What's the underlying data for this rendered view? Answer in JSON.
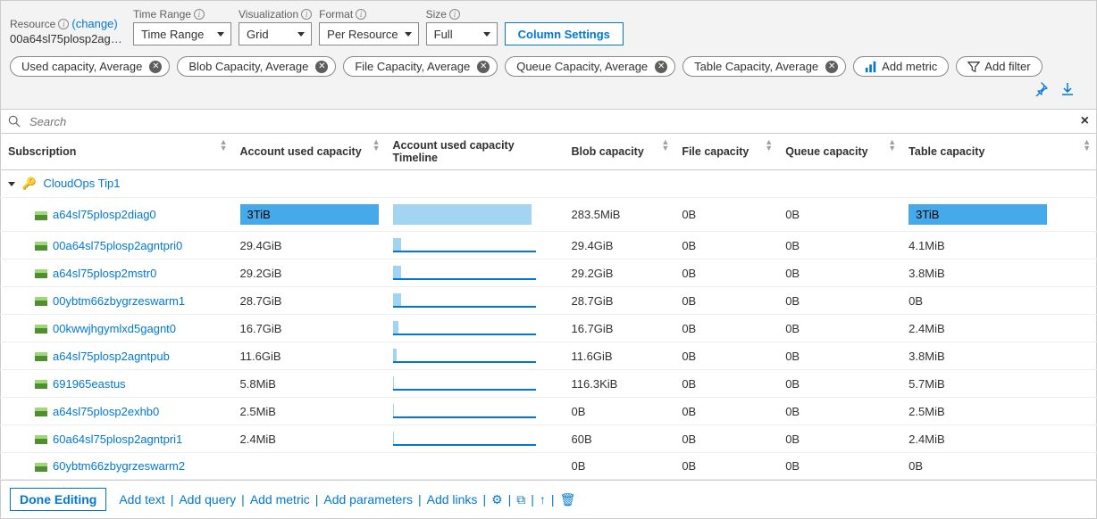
{
  "toolbar": {
    "resource_label": "Resource",
    "change_link": "(change)",
    "resource_name": "00a64sl75plosp2agntpri...",
    "time_range_label": "Time Range",
    "time_range_value": "Time Range",
    "visualization_label": "Visualization",
    "visualization_value": "Grid",
    "format_label": "Format",
    "format_value": "Per Resource",
    "size_label": "Size",
    "size_value": "Full",
    "column_settings": "Column Settings"
  },
  "metric_pills": [
    "Used capacity, Average",
    "Blob Capacity, Average",
    "File Capacity, Average",
    "Queue Capacity, Average",
    "Table Capacity, Average"
  ],
  "add_metric": "Add metric",
  "add_filter": "Add filter",
  "search_placeholder": "Search",
  "columns": {
    "subscription": "Subscription",
    "used": "Account used capacity",
    "timeline": "Account used capacity Timeline",
    "blob": "Blob capacity",
    "file": "File capacity",
    "queue": "Queue capacity",
    "table": "Table capacity"
  },
  "group_name": "CloudOps Tip1",
  "rows": [
    {
      "name": "a64sl75plosp2diag0",
      "used": "3TiB",
      "timeline_pct": 100,
      "blob": "283.5MiB",
      "file": "0B",
      "queue": "0B",
      "table": "3TiB",
      "highlight": true
    },
    {
      "name": "00a64sl75plosp2agntpri0",
      "used": "29.4GiB",
      "timeline_pct": 6,
      "blob": "29.4GiB",
      "file": "0B",
      "queue": "0B",
      "table": "4.1MiB"
    },
    {
      "name": "a64sl75plosp2mstr0",
      "used": "29.2GiB",
      "timeline_pct": 6,
      "blob": "29.2GiB",
      "file": "0B",
      "queue": "0B",
      "table": "3.8MiB"
    },
    {
      "name": "00ybtm66zbygrzeswarm1",
      "used": "28.7GiB",
      "timeline_pct": 6,
      "blob": "28.7GiB",
      "file": "0B",
      "queue": "0B",
      "table": "0B"
    },
    {
      "name": "00kwwjhgymlxd5gagnt0",
      "used": "16.7GiB",
      "timeline_pct": 4,
      "blob": "16.7GiB",
      "file": "0B",
      "queue": "0B",
      "table": "2.4MiB"
    },
    {
      "name": "a64sl75plosp2agntpub",
      "used": "11.6GiB",
      "timeline_pct": 3,
      "blob": "11.6GiB",
      "file": "0B",
      "queue": "0B",
      "table": "3.8MiB"
    },
    {
      "name": "691965eastus",
      "used": "5.8MiB",
      "timeline_pct": 1,
      "blob": "116.3KiB",
      "file": "0B",
      "queue": "0B",
      "table": "5.7MiB"
    },
    {
      "name": "a64sl75plosp2exhb0",
      "used": "2.5MiB",
      "timeline_pct": 1,
      "blob": "0B",
      "file": "0B",
      "queue": "0B",
      "table": "2.5MiB"
    },
    {
      "name": "60a64sl75plosp2agntpri1",
      "used": "2.4MiB",
      "timeline_pct": 1,
      "blob": "60B",
      "file": "0B",
      "queue": "0B",
      "table": "2.4MiB"
    },
    {
      "name": "60ybtm66zbygrzeswarm2",
      "used": "",
      "timeline_pct": 0,
      "blob": "0B",
      "file": "0B",
      "queue": "0B",
      "table": "0B"
    }
  ],
  "bottom": {
    "done_editing": "Done Editing",
    "add_text": "Add text",
    "add_query": "Add query",
    "add_metric": "Add metric",
    "add_parameters": "Add parameters",
    "add_links": "Add links"
  },
  "colors": {
    "highlight_used": "#46aaea",
    "highlight_timeline": "#a3d4f1",
    "highlight_table": "#46aaea",
    "bar_border": "#0078d4",
    "link": "#0078d4"
  },
  "storage_icon_colors": {
    "top": "#a0d77b",
    "bottom": "#4f8f2f"
  }
}
